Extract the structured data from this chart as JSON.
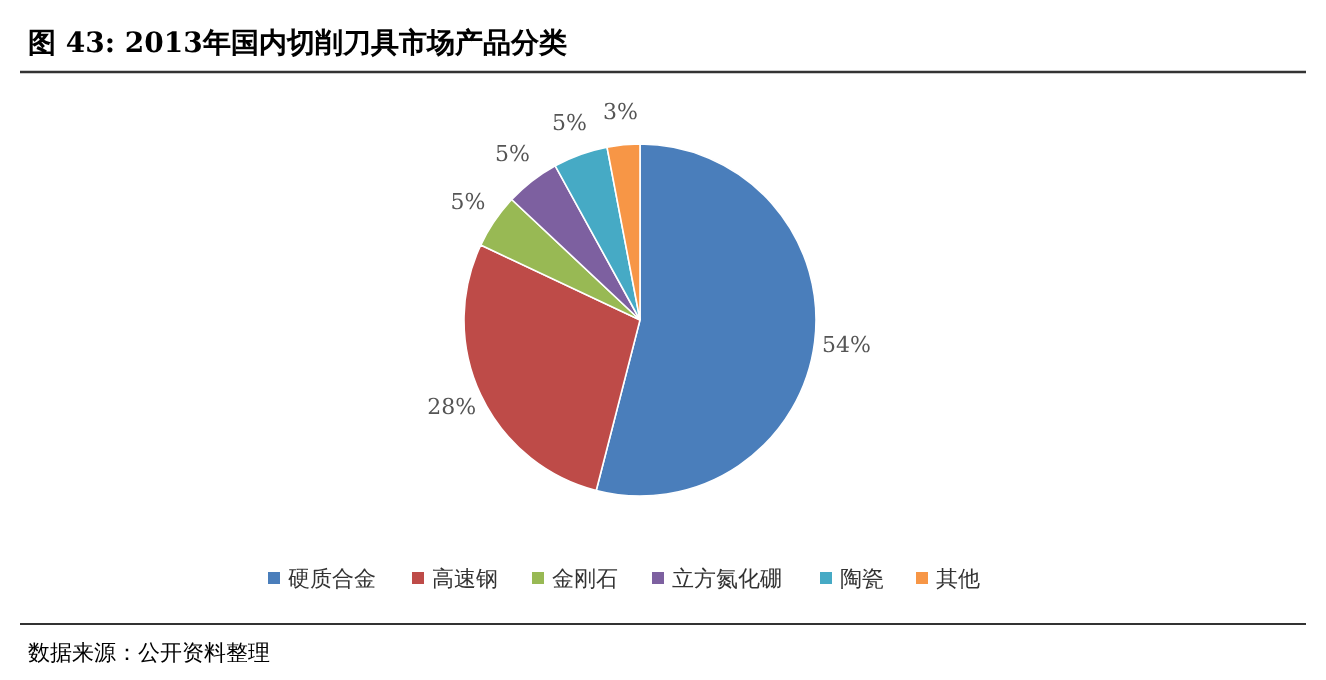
{
  "chart_data": {
    "type": "pie",
    "title": "图 43:  2013年国内切削刀具市场产品分类",
    "categories": [
      "硬质合金",
      "高速钢",
      "金刚石",
      "立方氮化硼",
      "陶瓷",
      "其他"
    ],
    "values": [
      54,
      28,
      5,
      5,
      5,
      3
    ],
    "value_labels": [
      "54%",
      "28%",
      "5%",
      "5%",
      "5%",
      "3%"
    ],
    "colors": [
      "#4a7ebb",
      "#be4b48",
      "#98b954",
      "#7d60a0",
      "#46aac5",
      "#f79646"
    ],
    "legend": "bottom",
    "annotations": [
      "数据来源：公开资料整理"
    ]
  }
}
